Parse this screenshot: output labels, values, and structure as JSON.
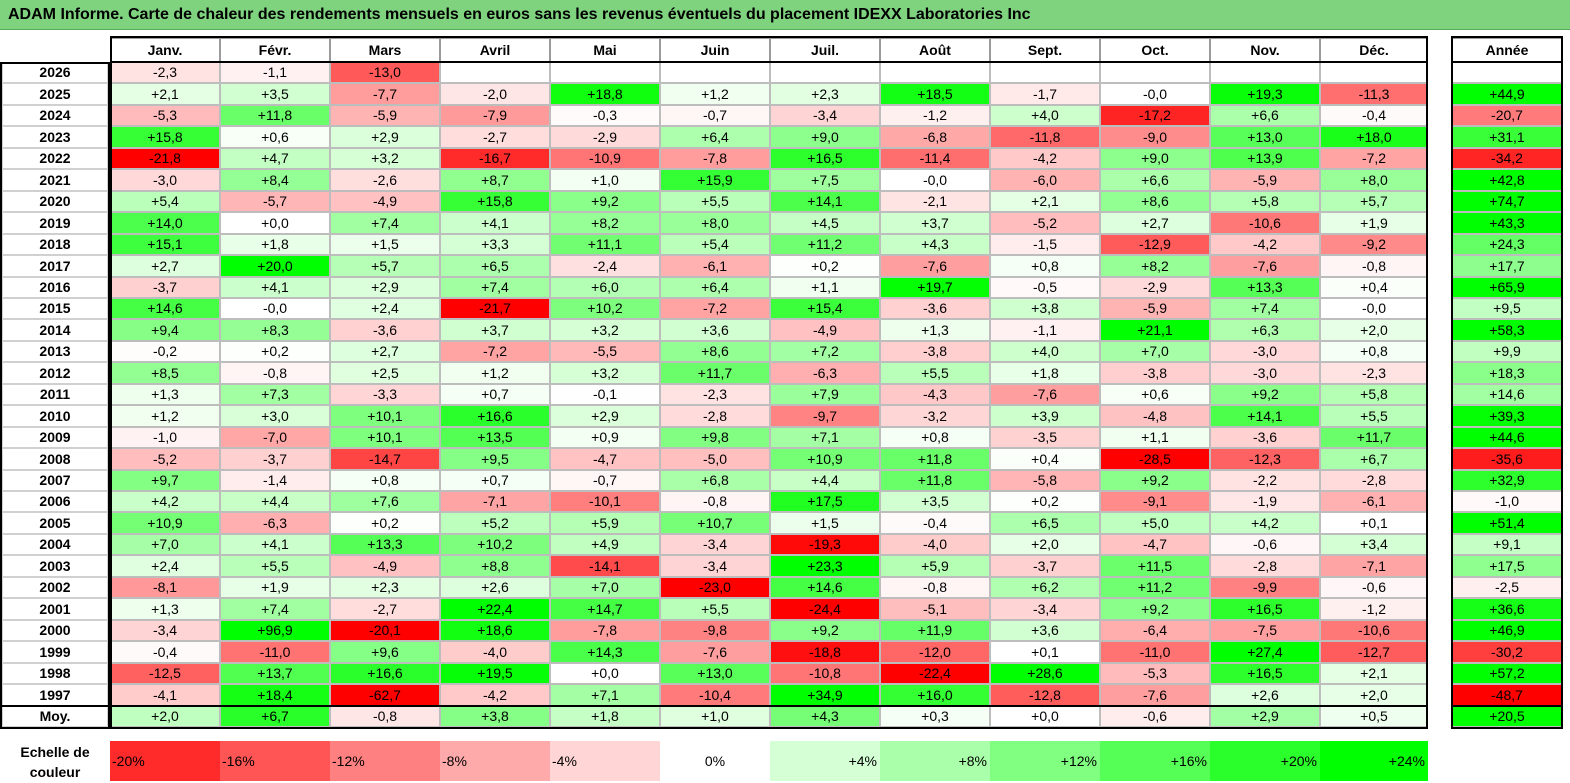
{
  "title": "ADAM Informe. Carte de chaleur des rendements mensuels en euros sans les revenus éventuels du placement IDEXX Laboratories Inc",
  "chart_data": {
    "type": "heatmap",
    "title": "ADAM Informe. Carte de chaleur des rendements mensuels en euros sans les revenus éventuels du placement IDEXX Laboratories Inc",
    "columns": [
      "Janv.",
      "Févr.",
      "Mars",
      "Avril",
      "Mai",
      "Juin",
      "Juil.",
      "Août",
      "Sept.",
      "Oct.",
      "Nov.",
      "Déc."
    ],
    "year_header": "Année",
    "rows": [
      {
        "label": "2026",
        "values": [
          "-2,3",
          "-1,1",
          "-13,0",
          "",
          "",
          "",
          "",
          "",
          "",
          "",
          "",
          ""
        ],
        "year": ""
      },
      {
        "label": "2025",
        "values": [
          "+2,1",
          "+3,5",
          "-7,7",
          "-2,0",
          "+18,8",
          "+1,2",
          "+2,3",
          "+18,5",
          "-1,7",
          "-0,0",
          "+19,3",
          "-11,3"
        ],
        "year": "+44,9"
      },
      {
        "label": "2024",
        "values": [
          "-5,3",
          "+11,8",
          "-5,9",
          "-7,9",
          "-0,3",
          "-0,7",
          "-3,4",
          "-1,2",
          "+4,0",
          "-17,2",
          "+6,6",
          "-0,4"
        ],
        "year": "-20,7"
      },
      {
        "label": "2023",
        "values": [
          "+15,8",
          "+0,6",
          "+2,9",
          "-2,7",
          "-2,9",
          "+6,4",
          "+9,0",
          "-6,8",
          "-11,8",
          "-9,0",
          "+13,0",
          "+18,0"
        ],
        "year": "+31,1"
      },
      {
        "label": "2022",
        "values": [
          "-21,8",
          "+4,7",
          "+3,2",
          "-16,7",
          "-10,9",
          "-7,8",
          "+16,5",
          "-11,4",
          "-4,2",
          "+9,0",
          "+13,9",
          "-7,2"
        ],
        "year": "-34,2"
      },
      {
        "label": "2021",
        "values": [
          "-3,0",
          "+8,4",
          "-2,6",
          "+8,7",
          "+1,0",
          "+15,9",
          "+7,5",
          "-0,0",
          "-6,0",
          "+6,6",
          "-5,9",
          "+8,0"
        ],
        "year": "+42,8"
      },
      {
        "label": "2020",
        "values": [
          "+5,4",
          "-5,7",
          "-4,9",
          "+15,8",
          "+9,2",
          "+5,5",
          "+14,1",
          "-2,1",
          "+2,1",
          "+8,6",
          "+5,8",
          "+5,7"
        ],
        "year": "+74,7"
      },
      {
        "label": "2019",
        "values": [
          "+14,0",
          "+0,0",
          "+7,4",
          "+4,1",
          "+8,2",
          "+8,0",
          "+4,5",
          "+3,7",
          "-5,2",
          "+2,7",
          "-10,6",
          "+1,9"
        ],
        "year": "+43,3"
      },
      {
        "label": "2018",
        "values": [
          "+15,1",
          "+1,8",
          "+1,5",
          "+3,3",
          "+11,1",
          "+5,4",
          "+11,2",
          "+4,3",
          "-1,5",
          "-12,9",
          "-4,2",
          "-9,2"
        ],
        "year": "+24,3"
      },
      {
        "label": "2017",
        "values": [
          "+2,7",
          "+20,0",
          "+5,7",
          "+6,5",
          "-2,4",
          "-6,1",
          "+0,2",
          "-7,6",
          "+0,8",
          "+8,2",
          "-7,6",
          "-0,8"
        ],
        "year": "+17,7"
      },
      {
        "label": "2016",
        "values": [
          "-3,7",
          "+4,1",
          "+2,9",
          "+7,4",
          "+6,0",
          "+6,4",
          "+1,1",
          "+19,7",
          "-0,5",
          "-2,9",
          "+13,3",
          "+0,4"
        ],
        "year": "+65,9"
      },
      {
        "label": "2015",
        "values": [
          "+14,6",
          "-0,0",
          "+2,4",
          "-21,7",
          "+10,2",
          "-7,2",
          "+15,4",
          "-3,6",
          "+3,8",
          "-5,9",
          "+7,4",
          "-0,0"
        ],
        "year": "+9,5"
      },
      {
        "label": "2014",
        "values": [
          "+9,4",
          "+8,3",
          "-3,6",
          "+3,7",
          "+3,2",
          "+3,6",
          "-4,9",
          "+1,3",
          "-1,1",
          "+21,1",
          "+6,3",
          "+2,0"
        ],
        "year": "+58,3"
      },
      {
        "label": "2013",
        "values": [
          "-0,2",
          "+0,2",
          "+2,7",
          "-7,2",
          "-5,5",
          "+8,6",
          "+7,2",
          "-3,8",
          "+4,0",
          "+7,0",
          "-3,0",
          "+0,8"
        ],
        "year": "+9,9"
      },
      {
        "label": "2012",
        "values": [
          "+8,5",
          "-0,8",
          "+2,5",
          "+1,2",
          "+3,2",
          "+11,7",
          "-6,3",
          "+5,5",
          "+1,8",
          "-3,8",
          "-3,0",
          "-2,3"
        ],
        "year": "+18,3"
      },
      {
        "label": "2011",
        "values": [
          "+1,3",
          "+7,3",
          "-3,3",
          "+0,7",
          "-0,1",
          "-2,3",
          "+7,9",
          "-4,3",
          "-7,6",
          "+0,6",
          "+9,2",
          "+5,8"
        ],
        "year": "+14,6"
      },
      {
        "label": "2010",
        "values": [
          "+1,2",
          "+3,0",
          "+10,1",
          "+16,6",
          "+2,9",
          "-2,8",
          "-9,7",
          "-3,2",
          "+3,9",
          "-4,8",
          "+14,1",
          "+5,5"
        ],
        "year": "+39,3"
      },
      {
        "label": "2009",
        "values": [
          "-1,0",
          "-7,0",
          "+10,1",
          "+13,5",
          "+0,9",
          "+9,8",
          "+7,1",
          "+0,8",
          "-3,5",
          "+1,1",
          "-3,6",
          "+11,7"
        ],
        "year": "+44,6"
      },
      {
        "label": "2008",
        "values": [
          "-5,2",
          "-3,7",
          "-14,7",
          "+9,5",
          "-4,7",
          "-5,0",
          "+10,9",
          "+11,8",
          "+0,4",
          "-28,5",
          "-12,3",
          "+6,7"
        ],
        "year": "-35,6"
      },
      {
        "label": "2007",
        "values": [
          "+9,7",
          "-1,4",
          "+0,8",
          "+0,7",
          "-0,7",
          "+6,8",
          "+4,4",
          "+11,8",
          "-5,8",
          "+9,2",
          "-2,2",
          "-2,8"
        ],
        "year": "+32,9"
      },
      {
        "label": "2006",
        "values": [
          "+4,2",
          "+4,4",
          "+7,6",
          "-7,1",
          "-10,1",
          "-0,8",
          "+17,5",
          "+3,5",
          "+0,2",
          "-9,1",
          "-1,9",
          "-6,1"
        ],
        "year": "-1,0"
      },
      {
        "label": "2005",
        "values": [
          "+10,9",
          "-6,3",
          "+0,2",
          "+5,2",
          "+5,9",
          "+10,7",
          "+1,5",
          "-0,4",
          "+6,5",
          "+5,0",
          "+4,2",
          "+0,1"
        ],
        "year": "+51,4"
      },
      {
        "label": "2004",
        "values": [
          "+7,0",
          "+4,1",
          "+13,3",
          "+10,2",
          "+4,9",
          "-3,4",
          "-19,3",
          "-4,0",
          "+2,0",
          "-4,7",
          "-0,6",
          "+3,4"
        ],
        "year": "+9,1"
      },
      {
        "label": "2003",
        "values": [
          "+2,4",
          "+5,5",
          "-4,9",
          "+8,8",
          "-14,1",
          "-3,4",
          "+23,3",
          "+5,9",
          "-3,7",
          "+11,5",
          "-2,8",
          "-7,1"
        ],
        "year": "+17,5"
      },
      {
        "label": "2002",
        "values": [
          "-8,1",
          "+1,9",
          "+2,3",
          "+2,6",
          "+7,0",
          "-23,0",
          "+14,6",
          "-0,8",
          "+6,2",
          "+11,2",
          "-9,9",
          "-0,6"
        ],
        "year": "-2,5"
      },
      {
        "label": "2001",
        "values": [
          "+1,3",
          "+7,4",
          "-2,7",
          "+22,4",
          "+14,7",
          "+5,5",
          "-24,4",
          "-5,1",
          "-3,4",
          "+9,2",
          "+16,5",
          "-1,2"
        ],
        "year": "+36,6"
      },
      {
        "label": "2000",
        "values": [
          "-3,4",
          "+96,9",
          "-20,1",
          "+18,6",
          "-7,8",
          "-9,8",
          "+9,2",
          "+11,9",
          "+3,6",
          "-6,4",
          "-7,5",
          "-10,6"
        ],
        "year": "+46,9"
      },
      {
        "label": "1999",
        "values": [
          "-0,4",
          "-11,0",
          "+9,6",
          "-4,0",
          "+14,3",
          "-7,6",
          "-18,8",
          "-12,0",
          "+0,1",
          "-11,0",
          "+27,4",
          "-12,7"
        ],
        "year": "-30,2"
      },
      {
        "label": "1998",
        "values": [
          "-12,5",
          "+13,7",
          "+16,6",
          "+19,5",
          "+0,0",
          "+13,0",
          "-10,8",
          "-22,4",
          "+28,6",
          "-5,3",
          "+16,5",
          "+2,1"
        ],
        "year": "+57,2"
      },
      {
        "label": "1997",
        "values": [
          "-4,1",
          "+18,4",
          "-62,7",
          "-4,2",
          "+7,1",
          "-10,4",
          "+34,9",
          "+16,0",
          "-12,8",
          "-7,6",
          "+2,6",
          "+2,0"
        ],
        "year": "-48,7"
      }
    ],
    "average": {
      "label": "Moy.",
      "values": [
        "+2,0",
        "+6,7",
        "-0,8",
        "+3,8",
        "+1,8",
        "+1,0",
        "+4,3",
        "+0,3",
        "+0,0",
        "-0,6",
        "+2,9",
        "+0,5"
      ],
      "year": "+20,5"
    },
    "color_scale": {
      "label": "Echelle de couleur",
      "stops": [
        "-20%",
        "-16%",
        "-12%",
        "-8%",
        "-4%",
        "0%",
        "+4%",
        "+8%",
        "+12%",
        "+16%",
        "+20%",
        "+24%"
      ],
      "stop_values": [
        -20,
        -16,
        -12,
        -8,
        -4,
        0,
        4,
        8,
        12,
        16,
        20,
        24
      ],
      "min": -20,
      "max": 24,
      "neg_color": "#ff0000",
      "pos_color": "#00ff00",
      "mid_color": "#ffffff"
    }
  }
}
